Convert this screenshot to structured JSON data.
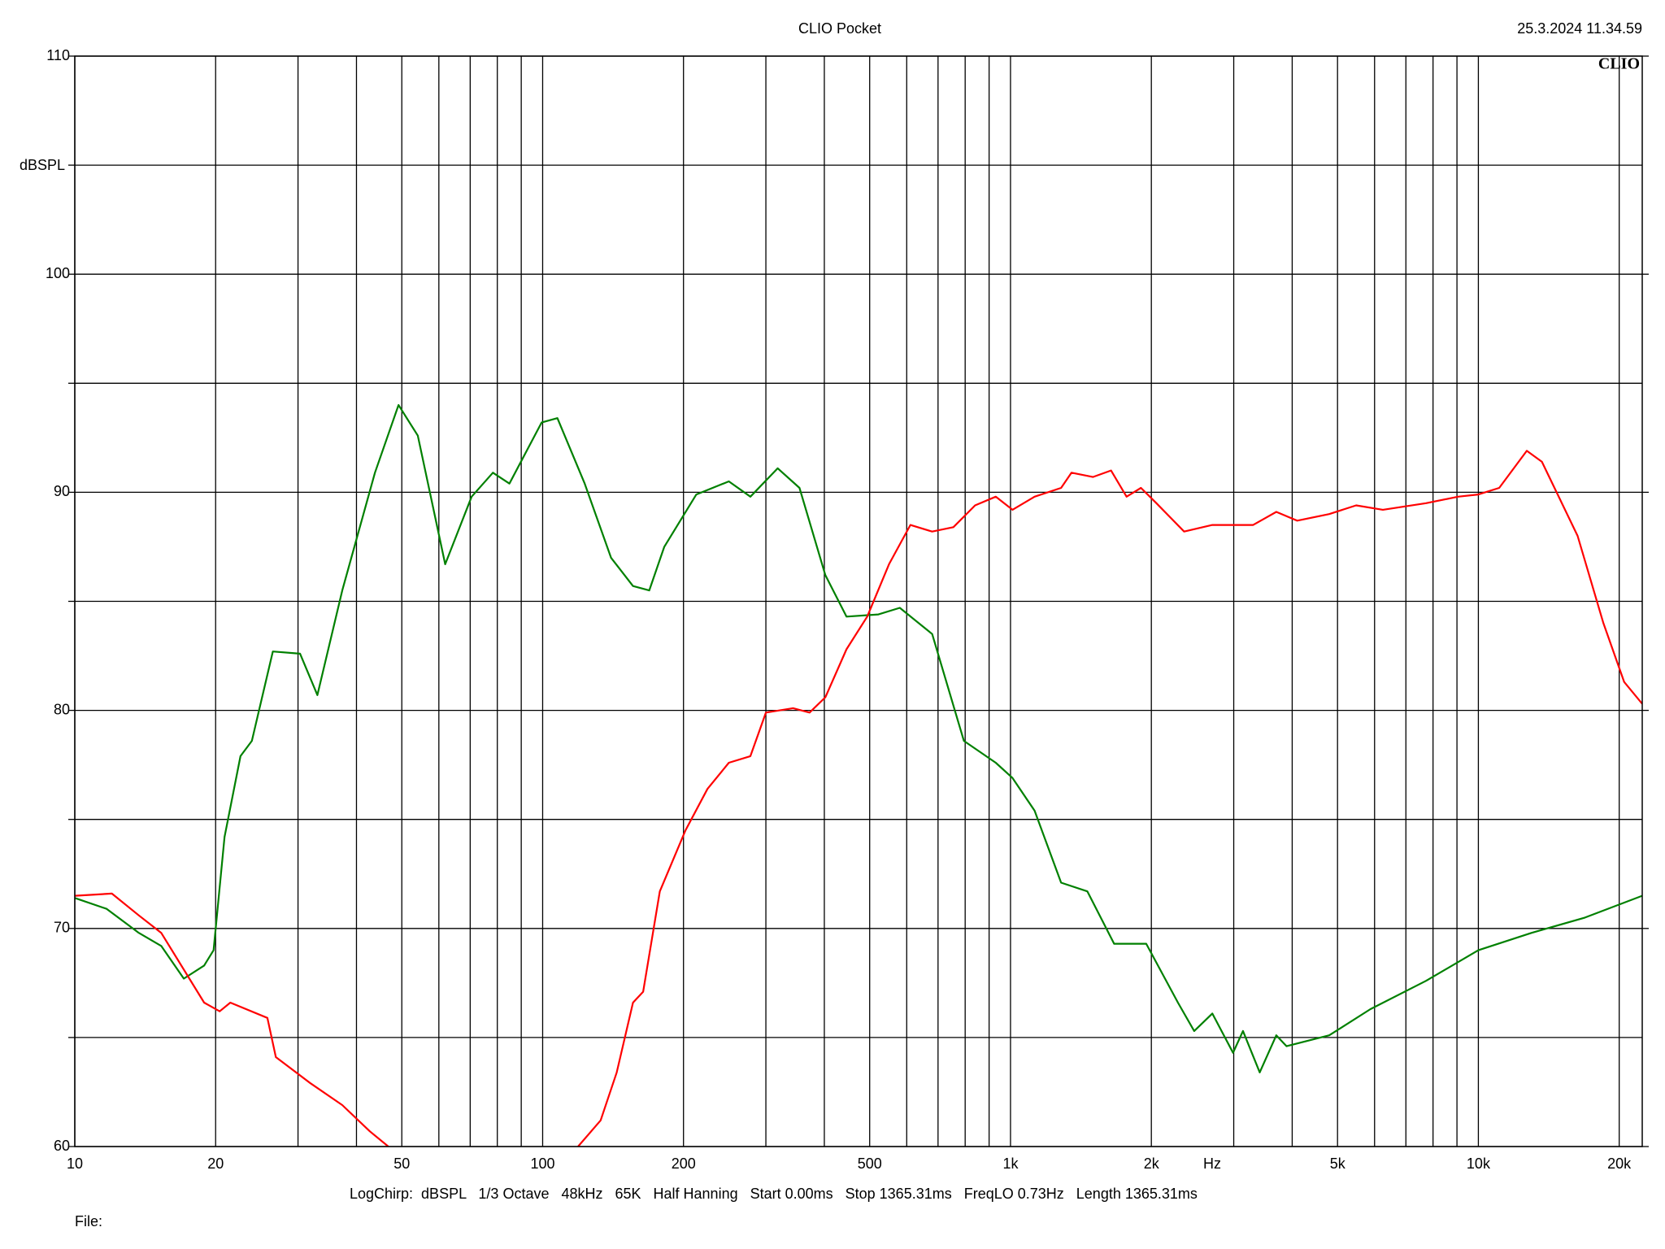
{
  "chart_data": {
    "type": "line",
    "title": "CLIO Pocket",
    "timestamp": "25.3.2024 11.34.59",
    "logo": "CLIO",
    "y_label": "dBSPL",
    "x_label": "Hz",
    "settings_line": "LogChirp:  dBSPL   1/3 Octave   48kHz   65K   Half Hanning   Start 0.00ms   Stop 1365.31ms   FreqLO 0.73Hz   Length 1365.31ms",
    "file_label": "File:",
    "xlog": true,
    "grid": true,
    "xlim": [
      10,
      22400
    ],
    "ylim": [
      60,
      110
    ],
    "xticks": [
      10,
      20,
      50,
      100,
      200,
      500,
      {
        "value": 1000,
        "label": "1k"
      },
      {
        "value": 2000,
        "label": "2k"
      },
      {
        "value": 5000,
        "label": "5k"
      },
      {
        "value": 10000,
        "label": "10k"
      },
      {
        "value": 20000,
        "label": "20k"
      }
    ],
    "x_minor_grid": [
      30,
      40,
      60,
      70,
      80,
      90,
      300,
      400,
      600,
      700,
      800,
      900,
      3000,
      4000,
      6000,
      7000,
      8000,
      9000
    ],
    "yticks": [
      60,
      70,
      80,
      90,
      100,
      110
    ],
    "y_minor_grid": [
      65,
      75,
      85,
      95,
      105
    ],
    "series": [
      {
        "color": "#008000",
        "x": [
          10,
          11.7,
          13.7,
          15.3,
          17.1,
          18.9,
          19.8,
          20.9,
          22.6,
          23.9,
          26.5,
          30.3,
          33.0,
          37.3,
          43.8,
          49.2,
          54.1,
          61.9,
          70.5,
          78.3,
          84.9,
          99.5,
          107.5,
          123,
          140,
          156,
          169,
          182,
          213,
          250,
          278,
          318,
          354,
          402,
          446,
          522,
          580,
          680,
          795,
          930,
          1010,
          1126,
          1283,
          1460,
          1665,
          1950,
          2280,
          2470,
          2700,
          2990,
          3140,
          3410,
          3700,
          3890,
          4800,
          5880,
          7730,
          10000,
          13000,
          16900,
          22400
        ],
        "values": [
          71.4,
          70.9,
          69.8,
          69.2,
          67.7,
          68.3,
          69.0,
          74.2,
          77.9,
          78.6,
          82.7,
          82.6,
          80.7,
          85.5,
          90.9,
          94.0,
          92.6,
          86.7,
          89.8,
          90.9,
          90.4,
          93.2,
          93.4,
          90.4,
          87.0,
          85.7,
          85.5,
          87.5,
          89.9,
          90.5,
          89.8,
          91.1,
          90.2,
          86.2,
          84.3,
          84.4,
          84.7,
          83.5,
          78.6,
          77.6,
          76.9,
          75.4,
          72.1,
          71.7,
          69.3,
          69.3,
          66.6,
          65.3,
          66.1,
          64.3,
          65.3,
          63.4,
          65.1,
          64.6,
          65.1,
          66.3,
          67.6,
          69.0,
          69.8,
          70.5,
          71.5
        ]
      },
      {
        "color": "#ff0000",
        "x": [
          10,
          12.0,
          13.7,
          15.3,
          18.9,
          20.4,
          21.5,
          25.8,
          26.9,
          31.9,
          37.3,
          42.7,
          46.8,
          80,
          119,
          133,
          144,
          156,
          164,
          178,
          202,
          225,
          250,
          278,
          300,
          343,
          372,
          402,
          446,
          494,
          550,
          611,
          680,
          755,
          840,
          930,
          1010,
          1126,
          1283,
          1350,
          1500,
          1640,
          1770,
          1900,
          2050,
          2350,
          2700,
          3300,
          3700,
          4100,
          4800,
          5480,
          6250,
          7730,
          9050,
          10000,
          11080,
          12690,
          13670,
          16300,
          18500,
          20500,
          22400
        ],
        "values": [
          71.5,
          71.6,
          70.6,
          69.8,
          66.6,
          66.2,
          66.6,
          65.9,
          64.1,
          62.9,
          61.9,
          60.7,
          60.0,
          null,
          60.0,
          61.2,
          63.4,
          66.6,
          67.1,
          71.7,
          74.5,
          76.4,
          77.6,
          77.9,
          79.9,
          80.1,
          79.9,
          80.6,
          82.8,
          84.3,
          86.7,
          88.5,
          88.2,
          88.4,
          89.4,
          89.8,
          89.2,
          89.8,
          90.2,
          90.9,
          90.7,
          91.0,
          89.8,
          90.2,
          89.5,
          88.2,
          88.5,
          88.5,
          89.1,
          88.7,
          89.0,
          89.4,
          89.2,
          89.5,
          89.8,
          89.9,
          90.2,
          91.9,
          91.4,
          88.0,
          84.0,
          81.3,
          80.3
        ]
      }
    ]
  }
}
